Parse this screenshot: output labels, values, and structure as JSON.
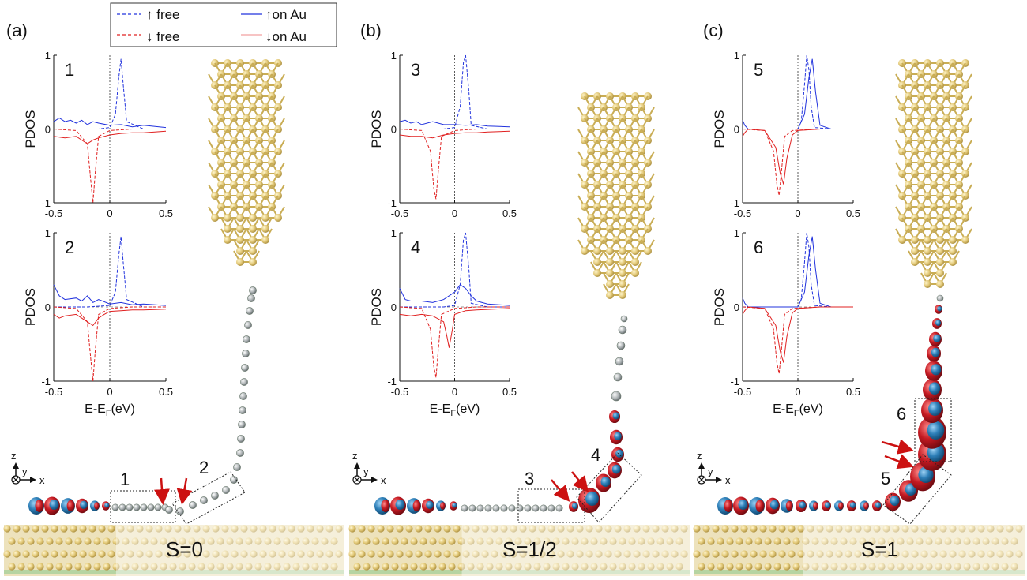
{
  "panels": [
    {
      "label": "(a)",
      "spin": "S=0"
    },
    {
      "label": "(b)",
      "spin": "S=1/2"
    },
    {
      "label": "(c)",
      "spin": "S=1"
    }
  ],
  "legend": {
    "items": [
      {
        "label": "↑ free",
        "color": "#2233dd",
        "dashed": true
      },
      {
        "label": "↓ free",
        "color": "#e02020",
        "dashed": true
      },
      {
        "label": "↑on Au",
        "color": "#2233dd",
        "dashed": false
      },
      {
        "label": "↓on Au",
        "color": "#e02020",
        "dashed": false
      }
    ]
  },
  "axes_text": {
    "ylabel": "PDOS",
    "xlabel_main": "E-E",
    "xlabel_sub": "F",
    "xlabel_unit": "(eV)"
  },
  "coords": {
    "z": "z",
    "y": "y",
    "x": "x"
  },
  "region_labels": {
    "a": [
      "1",
      "2"
    ],
    "b": [
      "3",
      "4"
    ],
    "c": [
      "5",
      "6"
    ]
  },
  "colors": {
    "spin_up": "#2233dd",
    "spin_down": "#e02020",
    "gold": "#d9c27a",
    "orbital_red": "#c41a22",
    "orbital_blue": "#2d7fb8",
    "arrow": "#cc1111"
  },
  "chart_data": [
    {
      "id": "1",
      "type": "line",
      "xlabel": "",
      "ylabel": "PDOS",
      "xlim": [
        -0.5,
        0.5
      ],
      "ylim": [
        -1,
        1
      ],
      "xticks": [
        "-0.5",
        "0",
        "0.5"
      ],
      "yticks": [
        "-1",
        "0",
        "1"
      ],
      "series": [
        {
          "spin": "up",
          "state": "free",
          "x": [
            -0.5,
            -0.3,
            -0.1,
            0.0,
            0.05,
            0.08,
            0.1,
            0.12,
            0.15,
            0.3,
            0.5
          ],
          "y": [
            0.0,
            0.0,
            0.0,
            0.02,
            0.2,
            0.7,
            0.95,
            0.6,
            0.1,
            0.0,
            0.0
          ]
        },
        {
          "spin": "down",
          "state": "free",
          "x": [
            -0.5,
            -0.3,
            -0.2,
            -0.17,
            -0.15,
            -0.13,
            -0.1,
            0.0,
            0.2,
            0.5
          ],
          "y": [
            0.0,
            -0.02,
            -0.2,
            -0.7,
            -1.0,
            -0.6,
            -0.1,
            -0.02,
            0.0,
            0.0
          ]
        },
        {
          "spin": "up",
          "state": "on Au",
          "x": [
            -0.5,
            -0.45,
            -0.4,
            -0.35,
            -0.3,
            -0.25,
            -0.2,
            -0.15,
            -0.1,
            0.0,
            0.1,
            0.2,
            0.3,
            0.5
          ],
          "y": [
            0.1,
            0.15,
            0.1,
            0.12,
            0.08,
            0.12,
            0.06,
            0.1,
            0.08,
            0.05,
            0.06,
            0.03,
            0.05,
            0.02
          ]
        },
        {
          "spin": "down",
          "state": "on Au",
          "x": [
            -0.5,
            -0.4,
            -0.3,
            -0.25,
            -0.2,
            -0.15,
            -0.1,
            -0.05,
            0.0,
            0.1,
            0.2,
            0.3,
            0.5
          ],
          "y": [
            -0.1,
            -0.12,
            -0.1,
            -0.15,
            -0.2,
            -0.15,
            -0.12,
            -0.1,
            -0.08,
            -0.06,
            -0.05,
            -0.05,
            -0.03
          ]
        }
      ]
    },
    {
      "id": "2",
      "type": "line",
      "xlabel": "E-EF(eV)",
      "ylabel": "PDOS",
      "xlim": [
        -0.5,
        0.5
      ],
      "ylim": [
        -1,
        1
      ],
      "xticks": [
        "-0.5",
        "0",
        "0.5"
      ],
      "yticks": [
        "-1",
        "0",
        "1"
      ],
      "series": [
        {
          "spin": "up",
          "state": "free",
          "x": [
            -0.5,
            -0.2,
            0.0,
            0.05,
            0.08,
            0.1,
            0.12,
            0.15,
            0.3,
            0.5
          ],
          "y": [
            0.0,
            0.0,
            0.02,
            0.2,
            0.7,
            0.95,
            0.6,
            0.1,
            0.0,
            0.0
          ]
        },
        {
          "spin": "down",
          "state": "free",
          "x": [
            -0.5,
            -0.3,
            -0.2,
            -0.17,
            -0.15,
            -0.13,
            -0.1,
            0.0,
            0.2,
            0.5
          ],
          "y": [
            0.0,
            -0.02,
            -0.2,
            -0.7,
            -1.0,
            -0.6,
            -0.1,
            -0.02,
            0.0,
            0.0
          ]
        },
        {
          "spin": "up",
          "state": "on Au",
          "x": [
            -0.5,
            -0.45,
            -0.4,
            -0.3,
            -0.25,
            -0.2,
            -0.15,
            -0.1,
            0.0,
            0.1,
            0.2,
            0.3,
            0.5
          ],
          "y": [
            0.3,
            0.15,
            0.1,
            0.12,
            0.08,
            0.15,
            0.06,
            0.1,
            0.04,
            0.06,
            0.03,
            0.04,
            0.02
          ]
        },
        {
          "spin": "down",
          "state": "on Au",
          "x": [
            -0.5,
            -0.45,
            -0.4,
            -0.3,
            -0.2,
            -0.15,
            -0.1,
            -0.05,
            0.0,
            0.1,
            0.2,
            0.3,
            0.5
          ],
          "y": [
            -0.1,
            -0.15,
            -0.12,
            -0.1,
            -0.2,
            -0.25,
            -0.15,
            -0.1,
            -0.06,
            -0.05,
            -0.04,
            -0.04,
            -0.03
          ]
        }
      ]
    },
    {
      "id": "3",
      "type": "line",
      "xlabel": "",
      "ylabel": "PDOS",
      "xlim": [
        -0.5,
        0.5
      ],
      "ylim": [
        -1,
        1
      ],
      "xticks": [
        "-0.5",
        "0",
        "0.5"
      ],
      "yticks": [
        "-1",
        "0",
        "1"
      ],
      "series": [
        {
          "spin": "up",
          "state": "free",
          "x": [
            -0.5,
            -0.1,
            0.0,
            0.05,
            0.08,
            0.1,
            0.13,
            0.15,
            0.3,
            0.5
          ],
          "y": [
            0.0,
            0.0,
            0.02,
            0.3,
            0.9,
            1.0,
            0.5,
            0.05,
            0.0,
            0.0
          ]
        },
        {
          "spin": "down",
          "state": "free",
          "x": [
            -0.5,
            -0.3,
            -0.22,
            -0.19,
            -0.17,
            -0.15,
            -0.12,
            0.0,
            0.2,
            0.5
          ],
          "y": [
            0.0,
            -0.02,
            -0.3,
            -0.8,
            -0.95,
            -0.6,
            -0.1,
            -0.02,
            0.0,
            0.0
          ]
        },
        {
          "spin": "up",
          "state": "on Au",
          "x": [
            -0.5,
            -0.45,
            -0.4,
            -0.35,
            -0.3,
            -0.2,
            -0.1,
            0.0,
            0.1,
            0.2,
            0.3,
            0.5
          ],
          "y": [
            0.1,
            0.12,
            0.08,
            0.1,
            0.06,
            0.1,
            0.06,
            0.06,
            0.05,
            0.06,
            0.04,
            0.03
          ]
        },
        {
          "spin": "down",
          "state": "on Au",
          "x": [
            -0.5,
            -0.4,
            -0.3,
            -0.2,
            -0.15,
            -0.1,
            0.0,
            0.1,
            0.2,
            0.3,
            0.5
          ],
          "y": [
            -0.08,
            -0.1,
            -0.1,
            -0.12,
            -0.1,
            -0.08,
            -0.06,
            -0.05,
            -0.05,
            -0.04,
            -0.03
          ]
        }
      ]
    },
    {
      "id": "4",
      "type": "line",
      "xlabel": "E-EF(eV)",
      "ylabel": "PDOS",
      "xlim": [
        -0.5,
        0.5
      ],
      "ylim": [
        -1,
        1
      ],
      "xticks": [
        "-0.5",
        "0",
        "0.5"
      ],
      "yticks": [
        "-1",
        "0",
        "1"
      ],
      "series": [
        {
          "spin": "up",
          "state": "free",
          "x": [
            -0.5,
            -0.1,
            0.0,
            0.05,
            0.08,
            0.1,
            0.13,
            0.15,
            0.3,
            0.5
          ],
          "y": [
            0.0,
            0.0,
            0.02,
            0.3,
            0.9,
            1.0,
            0.5,
            0.05,
            0.0,
            0.0
          ]
        },
        {
          "spin": "down",
          "state": "free",
          "x": [
            -0.5,
            -0.3,
            -0.22,
            -0.19,
            -0.17,
            -0.15,
            -0.12,
            0.0,
            0.2,
            0.5
          ],
          "y": [
            0.0,
            -0.02,
            -0.3,
            -0.8,
            -0.95,
            -0.6,
            -0.1,
            -0.02,
            0.0,
            0.0
          ]
        },
        {
          "spin": "up",
          "state": "on Au",
          "x": [
            -0.5,
            -0.45,
            -0.4,
            -0.3,
            -0.2,
            -0.1,
            0.0,
            0.05,
            0.1,
            0.15,
            0.2,
            0.3,
            0.5
          ],
          "y": [
            0.25,
            0.1,
            0.08,
            0.08,
            0.06,
            0.1,
            0.2,
            0.3,
            0.25,
            0.15,
            0.08,
            0.04,
            0.02
          ]
        },
        {
          "spin": "down",
          "state": "on Au",
          "x": [
            -0.5,
            -0.4,
            -0.3,
            -0.2,
            -0.1,
            -0.07,
            -0.05,
            -0.02,
            0.0,
            0.1,
            0.2,
            0.5
          ],
          "y": [
            -0.1,
            -0.12,
            -0.1,
            -0.12,
            -0.2,
            -0.4,
            -0.55,
            -0.3,
            -0.1,
            -0.05,
            -0.04,
            -0.02
          ]
        }
      ]
    },
    {
      "id": "5",
      "type": "line",
      "xlabel": "",
      "ylabel": "PDOS",
      "xlim": [
        -0.5,
        0.5
      ],
      "ylim": [
        -1,
        1
      ],
      "xticks": [
        "-0.5",
        "0",
        "0.5"
      ],
      "yticks": [
        "-1",
        "0",
        "1"
      ],
      "series": [
        {
          "spin": "up",
          "state": "free",
          "x": [
            -0.5,
            0.0,
            0.03,
            0.06,
            0.08,
            0.1,
            0.12,
            0.15,
            0.3,
            0.5
          ],
          "y": [
            0.0,
            0.0,
            0.1,
            0.6,
            1.0,
            0.8,
            0.3,
            0.02,
            0.0,
            0.0
          ]
        },
        {
          "spin": "down",
          "state": "free",
          "x": [
            -0.5,
            -0.3,
            -0.22,
            -0.19,
            -0.17,
            -0.15,
            -0.12,
            -0.05,
            0.2,
            0.5
          ],
          "y": [
            0.0,
            -0.02,
            -0.3,
            -0.75,
            -0.9,
            -0.6,
            -0.1,
            -0.02,
            0.0,
            0.0
          ]
        },
        {
          "spin": "up",
          "state": "on Au",
          "x": [
            -0.5,
            -0.48,
            -0.45,
            -0.3,
            0.0,
            0.06,
            0.1,
            0.13,
            0.16,
            0.2,
            0.3,
            0.5
          ],
          "y": [
            0.12,
            0.05,
            0.0,
            0.0,
            0.0,
            0.2,
            0.7,
            0.95,
            0.5,
            0.05,
            0.0,
            0.0
          ]
        },
        {
          "spin": "down",
          "state": "on Au",
          "x": [
            -0.5,
            -0.48,
            -0.45,
            -0.3,
            -0.2,
            -0.16,
            -0.13,
            -0.1,
            -0.05,
            0.0,
            0.2,
            0.5
          ],
          "y": [
            -0.1,
            -0.05,
            0.0,
            -0.02,
            -0.25,
            -0.6,
            -0.75,
            -0.4,
            -0.08,
            -0.02,
            0.0,
            0.0
          ]
        }
      ]
    },
    {
      "id": "6",
      "type": "line",
      "xlabel": "E-EF(eV)",
      "ylabel": "PDOS",
      "xlim": [
        -0.5,
        0.5
      ],
      "ylim": [
        -1,
        1
      ],
      "xticks": [
        "-0.5",
        "0",
        "0.5"
      ],
      "yticks": [
        "-1",
        "0",
        "1"
      ],
      "series": [
        {
          "spin": "up",
          "state": "free",
          "x": [
            -0.5,
            0.0,
            0.03,
            0.06,
            0.08,
            0.1,
            0.12,
            0.15,
            0.3,
            0.5
          ],
          "y": [
            0.0,
            0.0,
            0.1,
            0.6,
            1.0,
            0.8,
            0.3,
            0.02,
            0.0,
            0.0
          ]
        },
        {
          "spin": "down",
          "state": "free",
          "x": [
            -0.5,
            -0.3,
            -0.22,
            -0.19,
            -0.17,
            -0.15,
            -0.12,
            -0.05,
            0.2,
            0.5
          ],
          "y": [
            0.0,
            -0.02,
            -0.3,
            -0.75,
            -0.9,
            -0.6,
            -0.1,
            -0.02,
            0.0,
            0.0
          ]
        },
        {
          "spin": "up",
          "state": "on Au",
          "x": [
            -0.5,
            -0.48,
            -0.45,
            -0.3,
            0.0,
            0.06,
            0.1,
            0.13,
            0.16,
            0.2,
            0.3,
            0.5
          ],
          "y": [
            0.12,
            0.05,
            0.0,
            0.0,
            0.0,
            0.2,
            0.7,
            0.95,
            0.5,
            0.05,
            0.0,
            0.0
          ]
        },
        {
          "spin": "down",
          "state": "on Au",
          "x": [
            -0.5,
            -0.48,
            -0.45,
            -0.3,
            -0.2,
            -0.16,
            -0.13,
            -0.1,
            -0.05,
            0.0,
            0.2,
            0.5
          ],
          "y": [
            -0.1,
            -0.05,
            0.0,
            -0.02,
            -0.25,
            -0.6,
            -0.75,
            -0.4,
            -0.08,
            -0.02,
            0.0,
            0.0
          ]
        }
      ]
    }
  ]
}
